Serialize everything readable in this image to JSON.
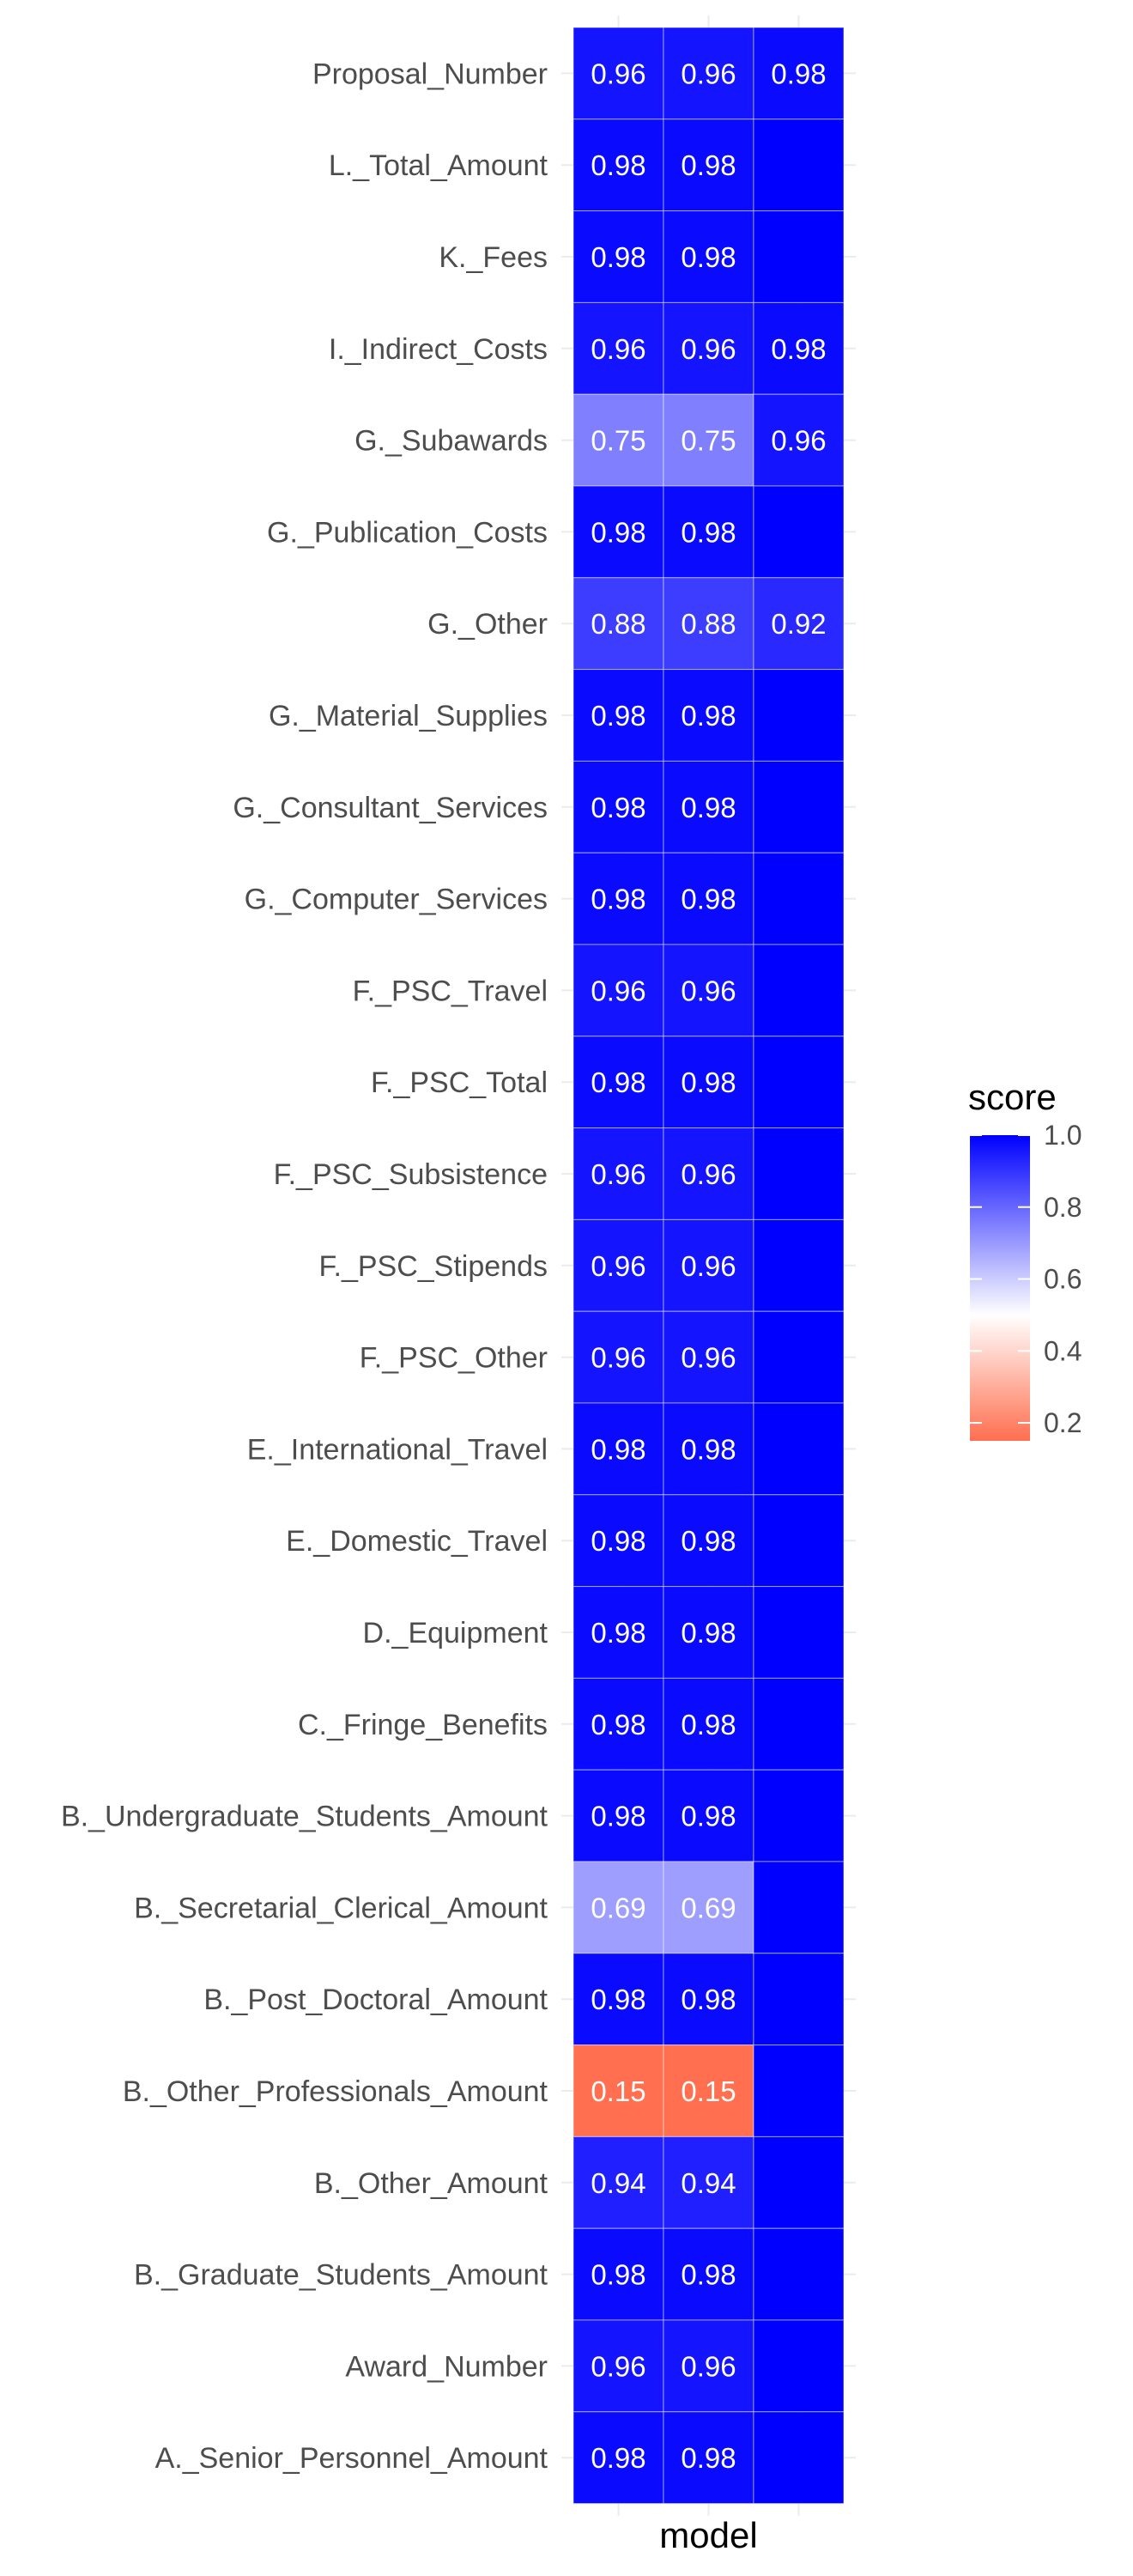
{
  "chart_data": {
    "type": "heatmap",
    "xlabel": "model",
    "ylabel": "",
    "title": "",
    "columns": 3,
    "rows": [
      {
        "label": "Proposal_Number",
        "values": [
          0.96,
          0.96,
          0.98
        ],
        "shown": [
          true,
          true,
          true
        ]
      },
      {
        "label": "L._Total_Amount",
        "values": [
          0.98,
          0.98,
          1.0
        ],
        "shown": [
          true,
          true,
          false
        ]
      },
      {
        "label": "K._Fees",
        "values": [
          0.98,
          0.98,
          1.0
        ],
        "shown": [
          true,
          true,
          false
        ]
      },
      {
        "label": "I._Indirect_Costs",
        "values": [
          0.96,
          0.96,
          0.98
        ],
        "shown": [
          true,
          true,
          true
        ]
      },
      {
        "label": "G._Subawards",
        "values": [
          0.75,
          0.75,
          0.96
        ],
        "shown": [
          true,
          true,
          true
        ]
      },
      {
        "label": "G._Publication_Costs",
        "values": [
          0.98,
          0.98,
          1.0
        ],
        "shown": [
          true,
          true,
          false
        ]
      },
      {
        "label": "G._Other",
        "values": [
          0.88,
          0.88,
          0.92
        ],
        "shown": [
          true,
          true,
          true
        ]
      },
      {
        "label": "G._Material_Supplies",
        "values": [
          0.98,
          0.98,
          1.0
        ],
        "shown": [
          true,
          true,
          false
        ]
      },
      {
        "label": "G._Consultant_Services",
        "values": [
          0.98,
          0.98,
          1.0
        ],
        "shown": [
          true,
          true,
          false
        ]
      },
      {
        "label": "G._Computer_Services",
        "values": [
          0.98,
          0.98,
          1.0
        ],
        "shown": [
          true,
          true,
          false
        ]
      },
      {
        "label": "F._PSC_Travel",
        "values": [
          0.96,
          0.96,
          1.0
        ],
        "shown": [
          true,
          true,
          false
        ]
      },
      {
        "label": "F._PSC_Total",
        "values": [
          0.98,
          0.98,
          1.0
        ],
        "shown": [
          true,
          true,
          false
        ]
      },
      {
        "label": "F._PSC_Subsistence",
        "values": [
          0.96,
          0.96,
          1.0
        ],
        "shown": [
          true,
          true,
          false
        ]
      },
      {
        "label": "F._PSC_Stipends",
        "values": [
          0.96,
          0.96,
          1.0
        ],
        "shown": [
          true,
          true,
          false
        ]
      },
      {
        "label": "F._PSC_Other",
        "values": [
          0.96,
          0.96,
          1.0
        ],
        "shown": [
          true,
          true,
          false
        ]
      },
      {
        "label": "E._International_Travel",
        "values": [
          0.98,
          0.98,
          1.0
        ],
        "shown": [
          true,
          true,
          false
        ]
      },
      {
        "label": "E._Domestic_Travel",
        "values": [
          0.98,
          0.98,
          1.0
        ],
        "shown": [
          true,
          true,
          false
        ]
      },
      {
        "label": "D._Equipment",
        "values": [
          0.98,
          0.98,
          1.0
        ],
        "shown": [
          true,
          true,
          false
        ]
      },
      {
        "label": "C._Fringe_Benefits",
        "values": [
          0.98,
          0.98,
          1.0
        ],
        "shown": [
          true,
          true,
          false
        ]
      },
      {
        "label": "B._Undergraduate_Students_Amount",
        "values": [
          0.98,
          0.98,
          1.0
        ],
        "shown": [
          true,
          true,
          false
        ]
      },
      {
        "label": "B._Secretarial_Clerical_Amount",
        "values": [
          0.69,
          0.69,
          1.0
        ],
        "shown": [
          true,
          true,
          false
        ]
      },
      {
        "label": "B._Post_Doctoral_Amount",
        "values": [
          0.98,
          0.98,
          1.0
        ],
        "shown": [
          true,
          true,
          false
        ]
      },
      {
        "label": "B._Other_Professionals_Amount",
        "values": [
          0.15,
          0.15,
          1.0
        ],
        "shown": [
          true,
          true,
          false
        ]
      },
      {
        "label": "B._Other_Amount",
        "values": [
          0.94,
          0.94,
          1.0
        ],
        "shown": [
          true,
          true,
          false
        ]
      },
      {
        "label": "B._Graduate_Students_Amount",
        "values": [
          0.98,
          0.98,
          1.0
        ],
        "shown": [
          true,
          true,
          false
        ]
      },
      {
        "label": "Award_Number",
        "values": [
          0.96,
          0.96,
          1.0
        ],
        "shown": [
          true,
          true,
          false
        ]
      },
      {
        "label": "A._Senior_Personnel_Amount",
        "values": [
          0.98,
          0.98,
          1.0
        ],
        "shown": [
          true,
          true,
          false
        ]
      }
    ],
    "legend": {
      "title": "score",
      "placement": "right",
      "ticks": [
        "0.2",
        "0.4",
        "0.6",
        "0.8",
        "1.0"
      ],
      "min": 0.15,
      "max": 1.0,
      "colors": {
        "low": "#ff6f50",
        "mid": "#ffffff",
        "high": "#0000ff"
      },
      "midpoint": 0.5
    },
    "grid": true
  }
}
